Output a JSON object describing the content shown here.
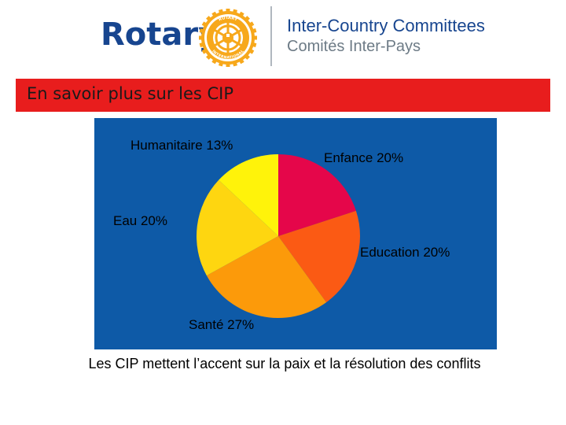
{
  "header": {
    "logo_text": "Rotary",
    "wheel_lettering": "ROTARY INTERNATIONAL",
    "committee_line1": "Inter-Country Committees",
    "committee_line2": "Comités Inter-Pays"
  },
  "banner": {
    "title": "En savoir plus sur les CIP"
  },
  "colors": {
    "brand_blue": "#17458f",
    "banner_red": "#e81d1d",
    "chart_background": "#0e5aa7",
    "wheel_gold": "#f7a81b"
  },
  "chart_data": {
    "type": "pie",
    "start_angle_deg": 0,
    "direction": "clockwise",
    "slices": [
      {
        "label": "Enfance 20%",
        "category": "Enfance",
        "value": 20,
        "color": "#e5064a"
      },
      {
        "label": "Education 20%",
        "category": "Education",
        "value": 20,
        "color": "#fb5a14"
      },
      {
        "label": "Santé 27%",
        "category": "Santé",
        "value": 27,
        "color": "#fc9a0a"
      },
      {
        "label": "Eau 20%",
        "category": "Eau",
        "value": 20,
        "color": "#fed610"
      },
      {
        "label": "Humanitaire 13%",
        "category": "Humanitaire",
        "value": 13,
        "color": "#fff30a"
      }
    ]
  },
  "caption": "Les CIP mettent l’accent sur la paix et la résolution des conflits"
}
